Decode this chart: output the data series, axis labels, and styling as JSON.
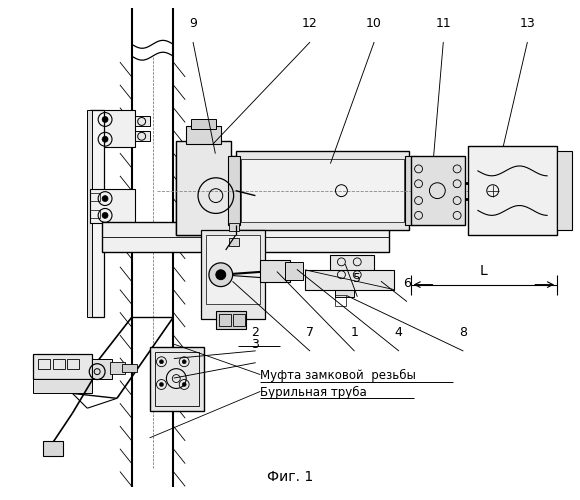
{
  "fig_label": "Фиг. 1",
  "bg_color": "#ffffff",
  "line_color": "#000000",
  "figsize": [
    5.8,
    5.0
  ],
  "dpi": 100,
  "mufta_text": "Муфта замковой  резьбы",
  "buril_text": "Бурильная труба"
}
